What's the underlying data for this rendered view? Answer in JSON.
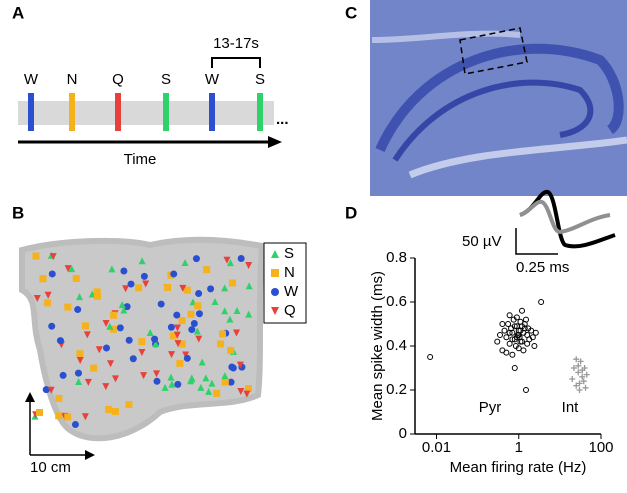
{
  "panel_a": {
    "label": "A",
    "interval": "13-17s",
    "ellipsis": "...",
    "axis_label": "Time",
    "events": [
      {
        "name": "W",
        "color": "#2a4fd0"
      },
      {
        "name": "N",
        "color": "#f5b21c"
      },
      {
        "name": "Q",
        "color": "#e8403a"
      },
      {
        "name": "S",
        "color": "#2fd16a"
      },
      {
        "name": "W",
        "color": "#2a4fd0"
      },
      {
        "name": "S",
        "color": "#2fd16a"
      }
    ]
  },
  "panel_b": {
    "label": "B",
    "scale_label": "10 cm",
    "legend": [
      {
        "name": "S",
        "color": "#2fd16a",
        "shape": "triangle"
      },
      {
        "name": "N",
        "color": "#f5b21c",
        "shape": "square"
      },
      {
        "name": "W",
        "color": "#2a4fd0",
        "shape": "circle"
      },
      {
        "name": "Q",
        "color": "#e8403a",
        "shape": "triangle-down"
      }
    ]
  },
  "panel_c": {
    "label": "C"
  },
  "panel_d": {
    "label": "D",
    "inset_amplitude": "50 µV",
    "inset_time": "0.25 ms",
    "chart_data": {
      "type": "scatter",
      "xlabel": "Mean firing rate (Hz)",
      "ylabel": "Mean spike width (ms)",
      "xscale": "log",
      "xlim": [
        0.003,
        100
      ],
      "ylim": [
        0,
        0.8
      ],
      "xticks": [
        0.01,
        1,
        100
      ],
      "yticks": [
        0,
        0.2,
        0.4,
        0.6,
        0.8
      ],
      "series": [
        {
          "name": "Pyr",
          "color": "#000000",
          "marker": "open-circle",
          "x": [
            0.007,
            0.3,
            0.35,
            0.4,
            0.45,
            0.5,
            0.55,
            0.6,
            0.65,
            0.7,
            0.75,
            0.8,
            0.85,
            0.9,
            0.95,
            1.0,
            1.05,
            1.1,
            1.2,
            1.3,
            1.4,
            1.5,
            1.6,
            1.7,
            1.8,
            2.0,
            2.2,
            2.4,
            2.6,
            0.5,
            0.6,
            0.7,
            0.8,
            0.9,
            1.0,
            1.1,
            1.2,
            1.4,
            1.6,
            0.4,
            0.7,
            1.0,
            1.3,
            1.5,
            3.5,
            0.8,
            1.1,
            0.6,
            0.9,
            1.2
          ],
          "y": [
            0.35,
            0.42,
            0.45,
            0.38,
            0.47,
            0.44,
            0.5,
            0.41,
            0.48,
            0.46,
            0.52,
            0.43,
            0.4,
            0.49,
            0.45,
            0.47,
            0.44,
            0.51,
            0.42,
            0.46,
            0.5,
            0.2,
            0.45,
            0.48,
            0.43,
            0.47,
            0.44,
            0.4,
            0.46,
            0.37,
            0.54,
            0.36,
            0.49,
            0.53,
            0.39,
            0.42,
            0.56,
            0.48,
            0.41,
            0.5,
            0.43,
            0.45,
            0.38,
            0.52,
            0.6,
            0.3,
            0.47,
            0.46,
            0.44,
            0.49
          ]
        },
        {
          "name": "Int",
          "color": "#999999",
          "marker": "plus",
          "x": [
            20,
            22,
            25,
            28,
            30,
            32,
            35,
            38,
            40,
            45,
            25,
            30,
            35,
            42,
            28
          ],
          "y": [
            0.25,
            0.3,
            0.22,
            0.28,
            0.2,
            0.33,
            0.26,
            0.24,
            0.3,
            0.27,
            0.34,
            0.23,
            0.29,
            0.21,
            0.31
          ]
        }
      ]
    }
  }
}
